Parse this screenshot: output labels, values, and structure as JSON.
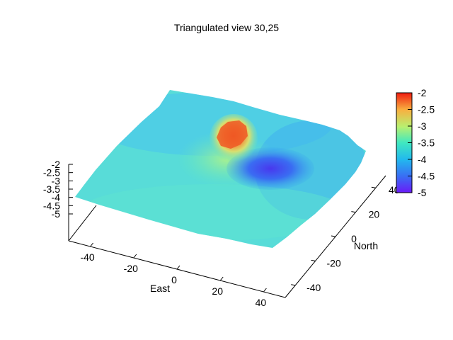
{
  "chart_data": {
    "type": "surface3d",
    "title": "Triangulated view 30,25",
    "view": {
      "rot_x": 30,
      "rot_z": 25
    },
    "xlabel": "East",
    "ylabel": "North",
    "zlabel": "",
    "x_ticks": [
      "-40",
      "-20",
      "0",
      "20",
      "40"
    ],
    "y_ticks": [
      "-40",
      "-20",
      "0",
      "20",
      "40"
    ],
    "z_ticks": [
      "-2",
      "-2.5",
      "-3",
      "-3.5",
      "-4",
      "-4.5",
      "-5"
    ],
    "xlim": [
      -50,
      50
    ],
    "ylim": [
      -50,
      50
    ],
    "zlim": [
      -5,
      -2
    ],
    "colorbar": {
      "ticks": [
        "-2",
        "-2.5",
        "-3",
        "-3.5",
        "-4",
        "-4.5",
        "-5"
      ],
      "range": [
        -5,
        -2
      ],
      "colormap": "rainbow"
    },
    "features": [
      {
        "kind": "peak",
        "x": -5,
        "y": 15,
        "z": -2.1
      },
      {
        "kind": "basin",
        "x": 25,
        "y": 20,
        "z": -4.8
      },
      {
        "kind": "baseline",
        "z": -3.8
      }
    ],
    "grid": false,
    "legend": "none"
  },
  "colors": {
    "low": "#6a2cf0",
    "mid_low": "#2da0f0",
    "mid": "#3ee0c0",
    "mid_high": "#c8f060",
    "high": "#f0a040",
    "top": "#e83020"
  }
}
